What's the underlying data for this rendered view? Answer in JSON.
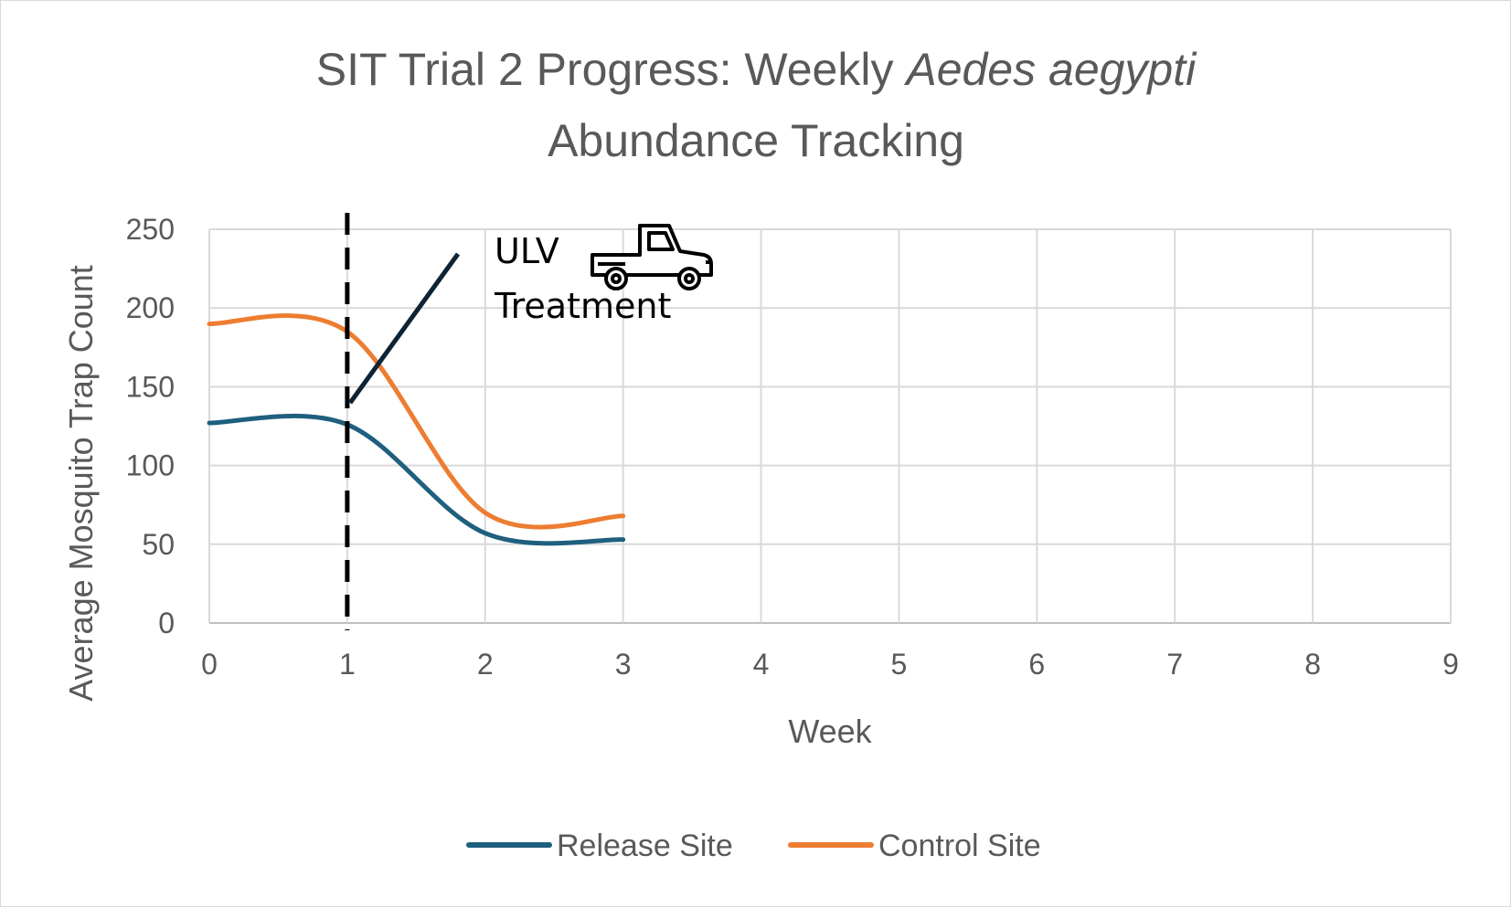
{
  "chart_data": {
    "type": "line",
    "title": {
      "line1_regular": "SIT Trial 2 Progress:  Weekly ",
      "line1_italic": "Aedes aegypti",
      "line2": "Abundance Tracking"
    },
    "xlabel": "Week",
    "ylabel": "Average Mosquito Trap Count",
    "xlim": [
      0,
      9
    ],
    "ylim": [
      0,
      250
    ],
    "x_ticks": [
      0,
      1,
      2,
      3,
      4,
      5,
      6,
      7,
      8,
      9
    ],
    "y_ticks": [
      0,
      50,
      100,
      150,
      200,
      250
    ],
    "grid": true,
    "smooth": true,
    "legend_position": "bottom",
    "series": [
      {
        "name": "Release Site",
        "color": "#1f5f7f",
        "x": [
          0,
          1,
          2,
          3
        ],
        "y": [
          127,
          126,
          57,
          53
        ]
      },
      {
        "name": "Control Site",
        "color": "#ed7d31",
        "x": [
          0,
          1,
          2,
          3
        ],
        "y": [
          190,
          185,
          70,
          68
        ]
      }
    ],
    "annotations": {
      "vertical_marker_x": 1,
      "treatment_label_line1": "ULV",
      "treatment_label_line2": "Treatment",
      "treatment_icon": "pickup-truck-icon"
    }
  }
}
